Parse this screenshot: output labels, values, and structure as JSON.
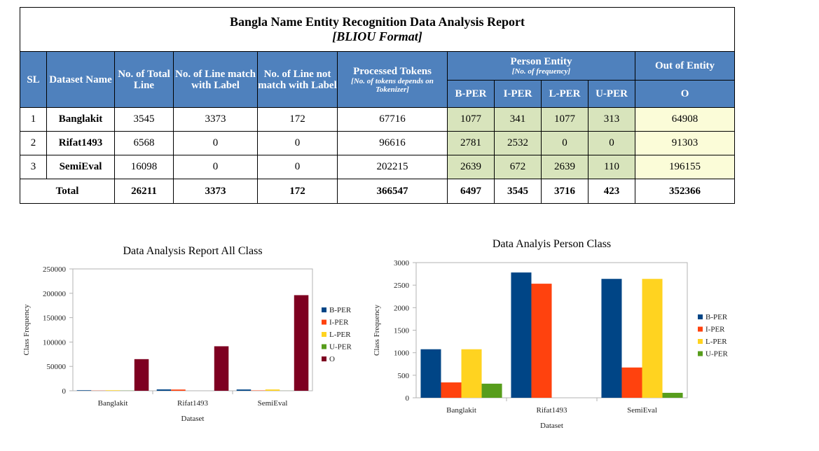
{
  "report": {
    "title": "Bangla Name Entity Recognition Data Analysis Report",
    "subtitle": "[BLIOU Format]",
    "headers": {
      "sl": "SL",
      "dataset_name": "Dataset Name",
      "total_line": "No. of Total Line",
      "line_match": "No. of Line match with Label",
      "line_not_match": "No. of Line not match with Label",
      "tokens": "Processed Tokens",
      "tokens_note": "[No. of tokens depends on Tokenizer]",
      "person_entity": "Person Entity",
      "person_entity_note": "[No. of frequency]",
      "out_of_entity": "Out of Entity",
      "b_per": "B-PER",
      "i_per": "I-PER",
      "l_per": "L-PER",
      "u_per": "U-PER",
      "o": "O"
    },
    "rows": [
      {
        "sl": "1",
        "name": "Banglakit",
        "total": "3545",
        "match": "3373",
        "not_match": "172",
        "tokens": "67716",
        "b": "1077",
        "i": "341",
        "l": "1077",
        "u": "313",
        "o": "64908"
      },
      {
        "sl": "2",
        "name": "Rifat1493",
        "total": "6568",
        "match": "0",
        "not_match": "0",
        "tokens": "96616",
        "b": "2781",
        "i": "2532",
        "l": "0",
        "u": "0",
        "o": "91303"
      },
      {
        "sl": "3",
        "name": "SemiEval",
        "total": "16098",
        "match": "0",
        "not_match": "0",
        "tokens": "202215",
        "b": "2639",
        "i": "672",
        "l": "2639",
        "u": "110",
        "o": "196155"
      }
    ],
    "total": {
      "label": "Total",
      "total": "26211",
      "match": "3373",
      "not_match": "172",
      "tokens": "366547",
      "b": "6497",
      "i": "3545",
      "l": "3716",
      "u": "423",
      "o": "352366"
    }
  },
  "colors": {
    "B-PER": "#004586",
    "I-PER": "#ff420e",
    "L-PER": "#ffd320",
    "U-PER": "#579d1c",
    "O": "#7e0021"
  },
  "chart_data": [
    {
      "type": "bar",
      "title": "Data Analysis Report All Class",
      "xlabel": "Dataset",
      "ylabel": "Class Frequency",
      "categories": [
        "Banglakit",
        "Rifat1493",
        "SemiEval"
      ],
      "ylim": [
        0,
        250000
      ],
      "yticks": [
        "0",
        "50000",
        "100000",
        "150000",
        "200000",
        "250000"
      ],
      "legend_position": "right",
      "grid": false,
      "series": [
        {
          "name": "B-PER",
          "values": [
            1077,
            2781,
            2639
          ]
        },
        {
          "name": "I-PER",
          "values": [
            341,
            2532,
            672
          ]
        },
        {
          "name": "L-PER",
          "values": [
            1077,
            0,
            2639
          ]
        },
        {
          "name": "U-PER",
          "values": [
            313,
            0,
            110
          ]
        },
        {
          "name": "O",
          "values": [
            64908,
            91303,
            196155
          ]
        }
      ]
    },
    {
      "type": "bar",
      "title": "Data Analyis Person Class",
      "xlabel": "Dataset",
      "ylabel": "Class Frequency",
      "categories": [
        "Banglakit",
        "Rifat1493",
        "SemiEval"
      ],
      "ylim": [
        0,
        3000
      ],
      "yticks": [
        "0",
        "500",
        "1000",
        "1500",
        "2000",
        "2500",
        "3000"
      ],
      "legend_position": "right",
      "grid": false,
      "series": [
        {
          "name": "B-PER",
          "values": [
            1077,
            2781,
            2639
          ]
        },
        {
          "name": "I-PER",
          "values": [
            341,
            2532,
            672
          ]
        },
        {
          "name": "L-PER",
          "values": [
            1077,
            0,
            2639
          ]
        },
        {
          "name": "U-PER",
          "values": [
            313,
            0,
            110
          ]
        }
      ]
    }
  ]
}
